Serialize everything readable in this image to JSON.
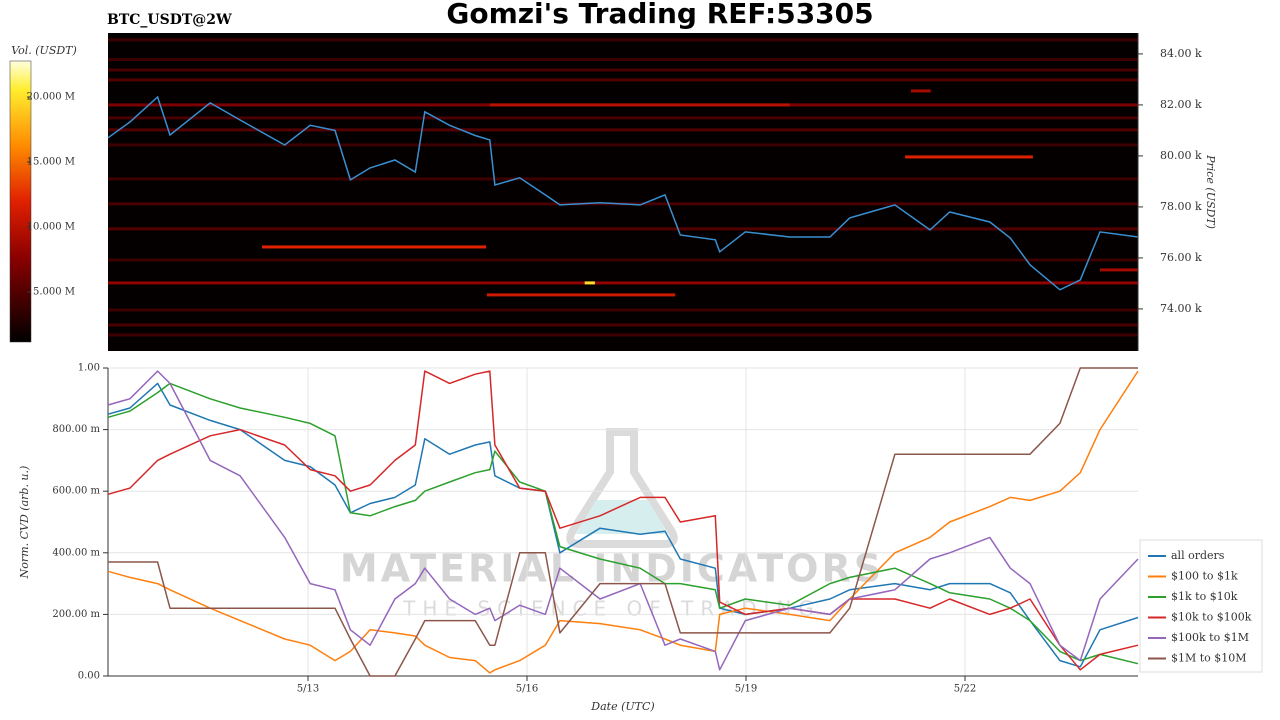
{
  "title": "Gomzi's Trading REF:53305",
  "symbol": "BTC_USDT@2W",
  "watermark": {
    "brand": "MATERIAL INDICATORS",
    "tagline": "THE SCIENCE OF TRADING"
  },
  "chart_data": [
    {
      "type": "heatmap",
      "ylabel": "Price (USDT)",
      "colorbar_label": "Vol. (USDT)",
      "xlim": [
        10.26,
        24.37
      ],
      "ylim": [
        72350,
        84820
      ],
      "yticks": [
        {
          "value": 74000,
          "label": "74.00 k"
        },
        {
          "value": 76000,
          "label": "76.00 k"
        },
        {
          "value": 78000,
          "label": "78.00 k"
        },
        {
          "value": 80000,
          "label": "80.00 k"
        },
        {
          "value": 82000,
          "label": "82.00 k"
        },
        {
          "value": 84000,
          "label": "84.00 k"
        }
      ],
      "clim": [
        1150000,
        22770000
      ],
      "cticks": [
        {
          "value": 5000000,
          "label": "5.000 M"
        },
        {
          "value": 10000000,
          "label": "10.000 M"
        },
        {
          "value": 15000000,
          "label": "15.000 M"
        },
        {
          "value": 20000000,
          "label": "20.000 M"
        }
      ],
      "heatmap": [
        {
          "price": 84550,
          "x0": 10.26,
          "x1": 24.37,
          "volume": 4000000
        },
        {
          "price": 83780,
          "x0": 10.26,
          "x1": 24.37,
          "volume": 4000000
        },
        {
          "price": 83370,
          "x0": 10.26,
          "x1": 24.37,
          "volume": 4500000
        },
        {
          "price": 82980,
          "x0": 10.26,
          "x1": 24.37,
          "volume": 5000000
        },
        {
          "price": 82550,
          "x0": 21.26,
          "x1": 21.53,
          "volume": 9000000
        },
        {
          "price": 82000,
          "x0": 10.26,
          "x1": 24.37,
          "volume": 7000000
        },
        {
          "price": 82000,
          "x0": 15.49,
          "x1": 19.6,
          "volume": 10000000
        },
        {
          "price": 81490,
          "x0": 10.26,
          "x1": 24.37,
          "volume": 4500000
        },
        {
          "price": 81020,
          "x0": 10.26,
          "x1": 24.37,
          "volume": 5000000
        },
        {
          "price": 80430,
          "x0": 10.26,
          "x1": 24.37,
          "volume": 4000000
        },
        {
          "price": 79960,
          "x0": 21.18,
          "x1": 22.93,
          "volume": 12000000
        },
        {
          "price": 79100,
          "x0": 10.26,
          "x1": 24.37,
          "volume": 4000000
        },
        {
          "price": 78120,
          "x0": 10.26,
          "x1": 24.37,
          "volume": 4500000
        },
        {
          "price": 77140,
          "x0": 10.26,
          "x1": 24.37,
          "volume": 5000000
        },
        {
          "price": 76430,
          "x0": 12.37,
          "x1": 15.44,
          "volume": 12000000
        },
        {
          "price": 75920,
          "x0": 10.26,
          "x1": 24.37,
          "volume": 4000000
        },
        {
          "price": 75530,
          "x0": 23.85,
          "x1": 24.37,
          "volume": 9000000
        },
        {
          "price": 75020,
          "x0": 10.26,
          "x1": 24.37,
          "volume": 8000000
        },
        {
          "price": 75020,
          "x0": 16.79,
          "x1": 16.93,
          "volume": 20000000
        },
        {
          "price": 74550,
          "x0": 15.45,
          "x1": 18.03,
          "volume": 11000000
        },
        {
          "price": 73960,
          "x0": 10.26,
          "x1": 24.37,
          "volume": 4000000
        },
        {
          "price": 73370,
          "x0": 10.26,
          "x1": 24.37,
          "volume": 4500000
        },
        {
          "price": 72980,
          "x0": 10.26,
          "x1": 24.37,
          "volume": 4000000
        }
      ],
      "x": [
        10.26,
        10.56,
        10.94,
        11.11,
        11.66,
        12.07,
        12.68,
        13.03,
        13.37,
        13.58,
        13.85,
        14.19,
        14.47,
        14.6,
        14.94,
        15.29,
        15.49,
        15.56,
        15.9,
        16.25,
        16.45,
        17.0,
        17.55,
        17.89,
        18.1,
        18.58,
        18.64,
        18.99,
        19.6,
        20.15,
        20.42,
        21.04,
        21.52,
        21.79,
        22.34,
        22.62,
        22.89,
        23.3,
        23.58,
        23.85,
        24.37
      ],
      "series": [
        {
          "color": "#3a8fd0",
          "values": [
            80710,
            81330,
            82310,
            80820,
            82080,
            81410,
            80430,
            81200,
            81000,
            79060,
            79530,
            79840,
            79370,
            81730,
            81200,
            80800,
            80630,
            78860,
            79140,
            78470,
            78080,
            78160,
            78080,
            78470,
            76900,
            76710,
            76240,
            77020,
            76820,
            76820,
            77570,
            78080,
            77100,
            77800,
            77410,
            76780,
            75730,
            74750,
            75140,
            77020,
            76820
          ]
        }
      ]
    },
    {
      "type": "line",
      "xlabel": "Date (UTC)",
      "ylabel": "Norm. CVD (arb. u.)",
      "xlim": [
        10.26,
        24.37
      ],
      "ylim": [
        0,
        1
      ],
      "xticks": [
        {
          "value": 13,
          "label": "5/13"
        },
        {
          "value": 16,
          "label": "5/16"
        },
        {
          "value": 19,
          "label": "5/19"
        },
        {
          "value": 22,
          "label": "5/22"
        }
      ],
      "yticks": [
        {
          "value": 0,
          "label": "0.00"
        },
        {
          "value": 0.2,
          "label": "200.00 m"
        },
        {
          "value": 0.4,
          "label": "400.00 m"
        },
        {
          "value": 0.6,
          "label": "600.00 m"
        },
        {
          "value": 0.8,
          "label": "800.00 m"
        },
        {
          "value": 1,
          "label": "1.00"
        }
      ],
      "grid": true,
      "legend": "right",
      "x": [
        10.26,
        10.56,
        10.94,
        11.11,
        11.66,
        12.07,
        12.68,
        13.03,
        13.37,
        13.58,
        13.85,
        14.19,
        14.47,
        14.6,
        14.94,
        15.29,
        15.49,
        15.56,
        15.9,
        16.25,
        16.45,
        17.0,
        17.55,
        17.89,
        18.1,
        18.58,
        18.64,
        18.99,
        19.6,
        20.15,
        20.42,
        21.04,
        21.52,
        21.79,
        22.34,
        22.62,
        22.89,
        23.3,
        23.58,
        23.85,
        24.37
      ],
      "series": [
        {
          "name": "all orders",
          "color": "#1f77b4",
          "values": [
            0.85,
            0.87,
            0.95,
            0.88,
            0.83,
            0.8,
            0.7,
            0.68,
            0.62,
            0.53,
            0.56,
            0.58,
            0.62,
            0.77,
            0.72,
            0.75,
            0.76,
            0.65,
            0.61,
            0.6,
            0.4,
            0.48,
            0.46,
            0.47,
            0.38,
            0.35,
            0.22,
            0.2,
            0.22,
            0.25,
            0.28,
            0.3,
            0.28,
            0.3,
            0.3,
            0.27,
            0.18,
            0.05,
            0.03,
            0.15,
            0.19
          ]
        },
        {
          "name": "$100 to $1k",
          "color": "#ff7f0e",
          "values": [
            0.34,
            0.32,
            0.3,
            0.28,
            0.22,
            0.18,
            0.12,
            0.1,
            0.05,
            0.08,
            0.15,
            0.14,
            0.13,
            0.1,
            0.06,
            0.05,
            0.01,
            0.02,
            0.05,
            0.1,
            0.18,
            0.17,
            0.15,
            0.12,
            0.1,
            0.08,
            0.2,
            0.22,
            0.2,
            0.18,
            0.25,
            0.4,
            0.45,
            0.5,
            0.55,
            0.58,
            0.57,
            0.6,
            0.66,
            0.8,
            0.99
          ]
        },
        {
          "name": "$1k to $10k",
          "color": "#2ca02c",
          "values": [
            0.84,
            0.86,
            0.92,
            0.95,
            0.9,
            0.87,
            0.84,
            0.82,
            0.78,
            0.53,
            0.52,
            0.55,
            0.57,
            0.6,
            0.63,
            0.66,
            0.67,
            0.73,
            0.63,
            0.6,
            0.42,
            0.38,
            0.35,
            0.3,
            0.3,
            0.28,
            0.22,
            0.25,
            0.23,
            0.3,
            0.32,
            0.35,
            0.3,
            0.27,
            0.25,
            0.22,
            0.18,
            0.08,
            0.05,
            0.07,
            0.04
          ]
        },
        {
          "name": "$10k to $100k",
          "color": "#d62728",
          "values": [
            0.59,
            0.61,
            0.7,
            0.72,
            0.78,
            0.8,
            0.75,
            0.67,
            0.65,
            0.6,
            0.62,
            0.7,
            0.75,
            0.99,
            0.95,
            0.98,
            0.99,
            0.75,
            0.61,
            0.6,
            0.48,
            0.52,
            0.58,
            0.58,
            0.5,
            0.52,
            0.24,
            0.2,
            0.22,
            0.2,
            0.25,
            0.25,
            0.22,
            0.25,
            0.2,
            0.22,
            0.25,
            0.1,
            0.02,
            0.07,
            0.1
          ]
        },
        {
          "name": "$100k to $1M",
          "color": "#9467bd",
          "values": [
            0.88,
            0.9,
            0.99,
            0.95,
            0.7,
            0.65,
            0.45,
            0.3,
            0.28,
            0.15,
            0.1,
            0.25,
            0.3,
            0.35,
            0.25,
            0.2,
            0.22,
            0.18,
            0.23,
            0.2,
            0.35,
            0.25,
            0.3,
            0.1,
            0.12,
            0.08,
            0.02,
            0.18,
            0.22,
            0.2,
            0.25,
            0.28,
            0.38,
            0.4,
            0.45,
            0.35,
            0.3,
            0.1,
            0.05,
            0.25,
            0.38
          ]
        },
        {
          "name": "$1M to $10M",
          "color": "#8c564b",
          "values": [
            0.37,
            0.37,
            0.37,
            0.22,
            0.22,
            0.22,
            0.22,
            0.22,
            0.22,
            0.12,
            0.0,
            0.0,
            0.12,
            0.18,
            0.18,
            0.18,
            0.1,
            0.1,
            0.4,
            0.4,
            0.14,
            0.3,
            0.3,
            0.3,
            0.14,
            0.14,
            0.14,
            0.14,
            0.14,
            0.14,
            0.22,
            0.72,
            0.72,
            0.72,
            0.72,
            0.72,
            0.72,
            0.82,
            1.0,
            1.0,
            1.0
          ]
        }
      ]
    }
  ]
}
